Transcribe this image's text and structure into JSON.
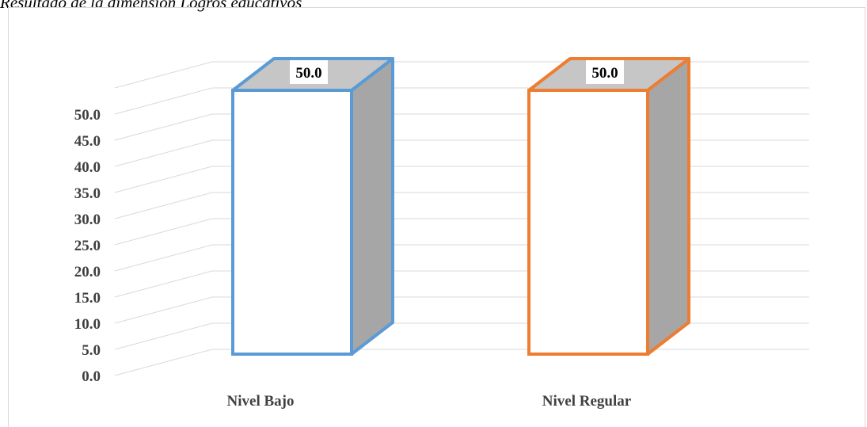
{
  "caption": "Resultado de la dimensión Logros educativos",
  "chart_data": {
    "type": "bar",
    "three_d": true,
    "categories": [
      "Nivel Bajo",
      "Nivel Regular"
    ],
    "values": [
      50.0,
      50.0
    ],
    "data_labels": [
      "50.0",
      "50.0"
    ],
    "bar_colors": [
      "#5b9bd5",
      "#ed7d31"
    ],
    "ylim": [
      0,
      50
    ],
    "yticks": [
      "0.0",
      "5.0",
      "10.0",
      "15.0",
      "20.0",
      "25.0",
      "30.0",
      "35.0",
      "40.0",
      "45.0",
      "50.0"
    ],
    "grid": true,
    "legend": "none"
  }
}
